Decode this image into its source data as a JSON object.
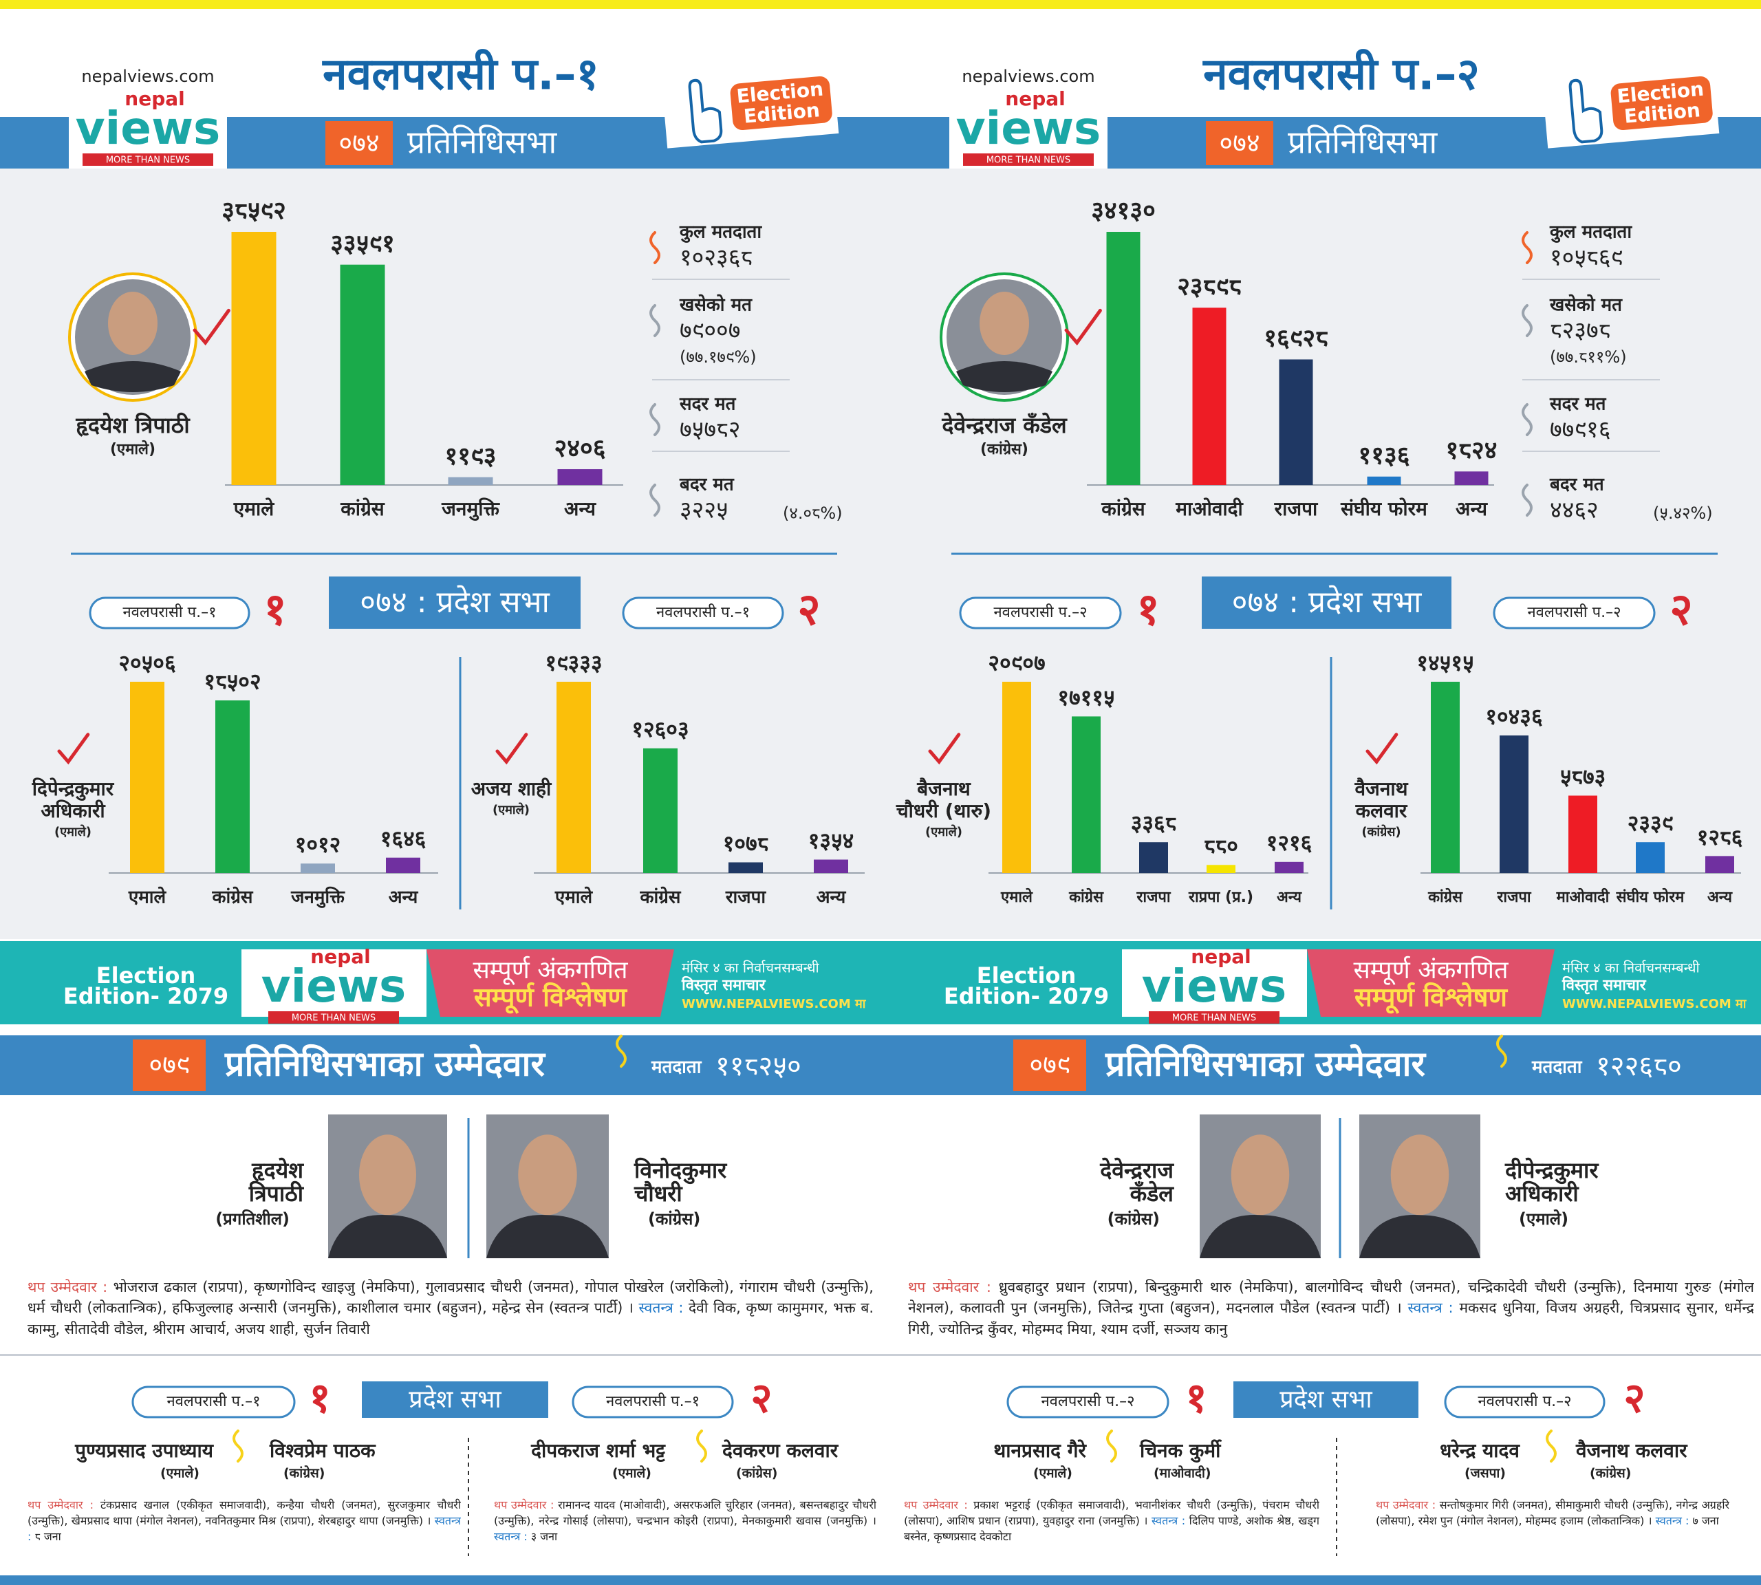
{
  "panels": [
    {
      "header": {
        "site": "nepalviews.com",
        "logo": {
          "top": "nepal",
          "main": "views",
          "tagline": "MORE THAN NEWS"
        },
        "title": "नवलपरासी प.–१",
        "badge": [
          "Election",
          "Edition"
        ],
        "year": "०७४",
        "subtitle": "प्रतिनिधिसभा"
      },
      "winner": {
        "name": "हृदयेश त्रिपाठी",
        "party": "(एमाले)"
      },
      "main_chart": {
        "type": "bar",
        "categories": [
          "एमाले",
          "कांग्रेस",
          "जनमुक्ति",
          "अन्य"
        ],
        "values": [
          38592,
          33591,
          1193,
          2406
        ],
        "value_labels": [
          "३८५९२",
          "३३५९१",
          "११९३",
          "२४०६"
        ],
        "colors": [
          "#fbbf0a",
          "#1aaa4a",
          "#8fa5c0",
          "#7030a0"
        ]
      },
      "stats": [
        {
          "label": "कुल मतदाता",
          "value": "१०२३६८"
        },
        {
          "label": "खसेको मत",
          "value": "७९००७",
          "note": "(७७.१७९%)"
        },
        {
          "label": "सदर मत",
          "value": "७५७८२"
        },
        {
          "label": "बदर मत",
          "value": "३२२५",
          "note": "(४.०८%)"
        }
      ],
      "pradesh": {
        "title": "०७४ : प्रदेश सभा",
        "districts": [
          {
            "tag": "नवलपरासी प.–१",
            "number": "१",
            "winner": {
              "name": [
                "दिपेन्द्रकुमार",
                "अधिकारी"
              ],
              "party": "(एमाले)"
            },
            "chart": {
              "type": "bar",
              "categories": [
                "एमाले",
                "कांग्रेस",
                "जनमुक्ति",
                "अन्य"
              ],
              "values": [
                20506,
                18502,
                1012,
                1646
              ],
              "value_labels": [
                "२०५०६",
                "१८५०२",
                "१०१२",
                "१६४६"
              ],
              "colors": [
                "#fbbf0a",
                "#1aaa4a",
                "#8fa5c0",
                "#7030a0"
              ]
            }
          },
          {
            "tag": "नवलपरासी प.–१",
            "number": "२",
            "winner": {
              "name": [
                "अजय शाही"
              ],
              "party": "(एमाले)"
            },
            "chart": {
              "type": "bar",
              "categories": [
                "एमाले",
                "कांग्रेस",
                "राजपा",
                "अन्य"
              ],
              "values": [
                19333,
                12603,
                1078,
                1354
              ],
              "value_labels": [
                "१९३३३",
                "१२६०३",
                "१०७८",
                "१३५४"
              ],
              "colors": [
                "#fbbf0a",
                "#1aaa4a",
                "#1f3864",
                "#7030a0"
              ]
            }
          }
        ]
      },
      "banner": {
        "edition": [
          "Election",
          "Edition- 2079"
        ],
        "logo": {
          "top": "nepal",
          "main": "views",
          "tagline": "MORE THAN NEWS"
        },
        "headline": [
          "सम्पूर्ण अंकगणित",
          "सम्पूर्ण विश्लेषण"
        ],
        "info": [
          "मंसिर ४ का निर्वाचनसम्बन्धी",
          "विस्तृत समाचार",
          "WWW.NEPALVIEWS.COM मा"
        ]
      },
      "candidates": {
        "year": "०७९",
        "title": "प्रतिनिधिसभाका उम्मेदवार",
        "voters_label": "मतदाता",
        "voters": "११८२५०",
        "main": [
          {
            "name": [
              "हृदयेश",
              "त्रिपाठी"
            ],
            "party": "(प्रगतिशील)"
          },
          {
            "name": [
              "विनोदकुमार",
              "चौधरी"
            ],
            "party": "(कांग्रेस)"
          }
        ],
        "others_label": "थप उम्मेदवार :",
        "others": "भोजराज ढकाल (राप्रपा), कृष्णगोविन्द खाइजु (नेमकिपा), गुलावप्रसाद चौधरी (जनमत), गोपाल पोखरेल (जरोकिलो), गंगाराम चौधरी (उन्मुक्ति), धर्म चौधरी (लोकतान्त्रिक), हफिजुल्लाह अन्सारी (जनमुक्ति), काशीलाल चमार (बहुजन), महेन्द्र सेन (स्वतन्त्र पार्टी) ।",
        "independent_label": "स्वतन्त्र :",
        "independent": "देवी विक, कृष्ण कामुमगर, भक्त ब. काम्मु, सीतादेवी वौडेल, श्रीराम आचार्य, अजय शाही, सुर्जन तिवारी"
      },
      "pradesh_2079": {
        "title": "प्रदेश सभा",
        "districts": [
          {
            "tag": "नवलपरासी प.–१",
            "number": "१",
            "candidates": [
              {
                "name": "पुण्यप्रसाद उपाध्याय",
                "party": "(एमाले)"
              },
              {
                "name": "विश्वप्रेम पाठक",
                "party": "(कांग्रेस)"
              }
            ],
            "others_label": "थप उम्मेदवार :",
            "others": "टंकप्रसाद खनाल (एकीकृत समाजवादी), कन्हैया चौधरी (जनमत), सुरजकुमार चौधरी (उन्मुक्ति), खेमप्रसाद थापा (मंगोल नेशनल), नवनितकुमार मिश्र (राप्रपा), शेरबहादुर थापा (जनमुक्ति) ।",
            "independent_label": "स्वतन्त्र :",
            "independent": "८ जना"
          },
          {
            "tag": "नवलपरासी प.–१",
            "number": "२",
            "candidates": [
              {
                "name": "दीपकराज शर्मा भट्ट",
                "party": "(एमाले)"
              },
              {
                "name": "देवकरण कलवार",
                "party": "(कांग्रेस)"
              }
            ],
            "others_label": "थप उम्मेदवार :",
            "others": "रामानन्द यादव (माओवादी), असरफअलि चुरिहार (जनमत), बसन्तबहादुर चौधरी (उन्मुक्ति), नरेन्द्र गोसाई (लोसपा), चन्द्रभान कोइरी (राप्रपा), मेनकाकुमारी खवास (जनमुक्ति) ।",
            "independent_label": "स्वतन्त्र :",
            "independent": "३ जना"
          }
        ]
      }
    },
    {
      "header": {
        "site": "nepalviews.com",
        "logo": {
          "top": "nepal",
          "main": "views",
          "tagline": "MORE THAN NEWS"
        },
        "title": "नवलपरासी प.–२",
        "badge": [
          "Election",
          "Edition"
        ],
        "year": "०७४",
        "subtitle": "प्रतिनिधिसभा"
      },
      "winner": {
        "name": "देवेन्द्रराज कँडेल",
        "party": "(कांग्रेस)"
      },
      "main_chart": {
        "type": "bar",
        "categories": [
          "कांग्रेस",
          "माओवादी",
          "राजपा",
          "संघीय फोरम",
          "अन्य"
        ],
        "values": [
          34130,
          23898,
          16928,
          1136,
          1824
        ],
        "value_labels": [
          "३४१३०",
          "२३८९८",
          "१६९२८",
          "११३६",
          "१८२४"
        ],
        "colors": [
          "#1aaa4a",
          "#ee1c25",
          "#1f3864",
          "#1f78c8",
          "#7030a0"
        ]
      },
      "stats": [
        {
          "label": "कुल मतदाता",
          "value": "१०५८६९"
        },
        {
          "label": "खसेको मत",
          "value": "८२३७८",
          "note": "(७७.८११%)"
        },
        {
          "label": "सदर मत",
          "value": "७७९१६"
        },
        {
          "label": "बदर मत",
          "value": "४४६२",
          "note": "(५.४२%)"
        }
      ],
      "pradesh": {
        "title": "०७४ : प्रदेश सभा",
        "districts": [
          {
            "tag": "नवलपरासी प.–२",
            "number": "१",
            "winner": {
              "name": [
                "बैजनाथ",
                "चौधरी (थारु)"
              ],
              "party": "(एमाले)"
            },
            "chart": {
              "type": "bar",
              "categories": [
                "एमाले",
                "कांग्रेस",
                "राजपा",
                "राप्रपा (प्र.)",
                "अन्य"
              ],
              "values": [
                20907,
                17115,
                3368,
                880,
                1216
              ],
              "value_labels": [
                "२०९०७",
                "१७११५",
                "३३६८",
                "८८०",
                "१२१६"
              ],
              "colors": [
                "#fbbf0a",
                "#1aaa4a",
                "#1f3864",
                "#f5e400",
                "#7030a0"
              ]
            }
          },
          {
            "tag": "नवलपरासी प.–२",
            "number": "२",
            "winner": {
              "name": [
                "वैजनाथ",
                "कलवार"
              ],
              "party": "(कांग्रेस)"
            },
            "chart": {
              "type": "bar",
              "categories": [
                "कांग्रेस",
                "राजपा",
                "माओवादी",
                "संघीय फोरम",
                "अन्य"
              ],
              "values": [
                14515,
                10436,
                5873,
                2339,
                1286
              ],
              "value_labels": [
                "१४५१५",
                "१०४३६",
                "५८७३",
                "२३३९",
                "१२८६"
              ],
              "colors": [
                "#1aaa4a",
                "#1f3864",
                "#ee1c25",
                "#1f78c8",
                "#7030a0"
              ]
            }
          }
        ]
      },
      "banner": {
        "edition": [
          "Election",
          "Edition- 2079"
        ],
        "logo": {
          "top": "nepal",
          "main": "views",
          "tagline": "MORE THAN NEWS"
        },
        "headline": [
          "सम्पूर्ण अंकगणित",
          "सम्पूर्ण विश्लेषण"
        ],
        "info": [
          "मंसिर ४ का निर्वाचनसम्बन्धी",
          "विस्तृत समाचार",
          "WWW.NEPALVIEWS.COM मा"
        ]
      },
      "candidates": {
        "year": "०७९",
        "title": "प्रतिनिधिसभाका उम्मेदवार",
        "voters_label": "मतदाता",
        "voters": "१२२६८०",
        "main": [
          {
            "name": [
              "देवेन्द्रराज",
              "कँडेल"
            ],
            "party": "(कांग्रेस)"
          },
          {
            "name": [
              "दीपेन्द्रकुमार",
              "अधिकारी"
            ],
            "party": "(एमाले)"
          }
        ],
        "others_label": "थप उम्मेदवार :",
        "others": "ध्रुवबहादुर प्रधान (राप्रपा), बिन्दुकुमारी थारु (नेमकिपा), बालगोविन्द चौधरी (जनमत), चन्द्रिकादेवी चौधरी (उन्मुक्ति), दिनमाया गुरुङ (मंगोल नेशनल), कलावती पुन (जनमुक्ति), जितेन्द्र गुप्ता (बहुजन), मदनलाल पौडेल (स्वतन्त्र पार्टी) ।",
        "independent_label": "स्वतन्त्र :",
        "independent": "मकसद धुनिया, विजय अग्रहरी, चित्रप्रसाद सुनार, धर्मेन्द्र गिरी, ज्योतिन्द्र कुँवर, मोहम्मद मिया, श्याम दर्जी, सञ्जय कानु"
      },
      "pradesh_2079": {
        "title": "प्रदेश सभा",
        "districts": [
          {
            "tag": "नवलपरासी प.–२",
            "number": "१",
            "candidates": [
              {
                "name": "थानप्रसाद गैरे",
                "party": "(एमाले)"
              },
              {
                "name": "चिनक कुर्मी",
                "party": "(माओवादी)"
              }
            ],
            "others_label": "थप उम्मेदवार :",
            "others": "प्रकाश भट्टराई (एकीकृत समाजवादी), भवानीशंकर चौधरी (उन्मुक्ति), पंचराम चौधरी (लोसपा), आशिष प्रधान (राप्रपा), युवहादुर राना (जनमुक्ति) ।",
            "independent_label": "स्वतन्त्र :",
            "independent": "दिलिप पाण्डे, अशोक श्रेष्ठ, खड्ग बस्नेत, कृष्णप्रसाद देवकोटा"
          },
          {
            "tag": "नवलपरासी प.–२",
            "number": "२",
            "candidates": [
              {
                "name": "धरेन्द्र यादव",
                "party": "(जसपा)"
              },
              {
                "name": "वैजनाथ कलवार",
                "party": "(कांग्रेस)"
              }
            ],
            "others_label": "थप उम्मेदवार :",
            "others": "सन्तोषकुमार गिरी (जनमत), सीमाकुमारी चौधरी (उन्मुक्ति), नगेन्द्र अग्रहरि (लोसपा), रमेश पुन (मंगोल नेशनल), मोहम्मद हजाम (लोकतान्त्रिक) ।",
            "independent_label": "स्वतन्त्र :",
            "independent": "७ जना"
          }
        ]
      }
    }
  ]
}
